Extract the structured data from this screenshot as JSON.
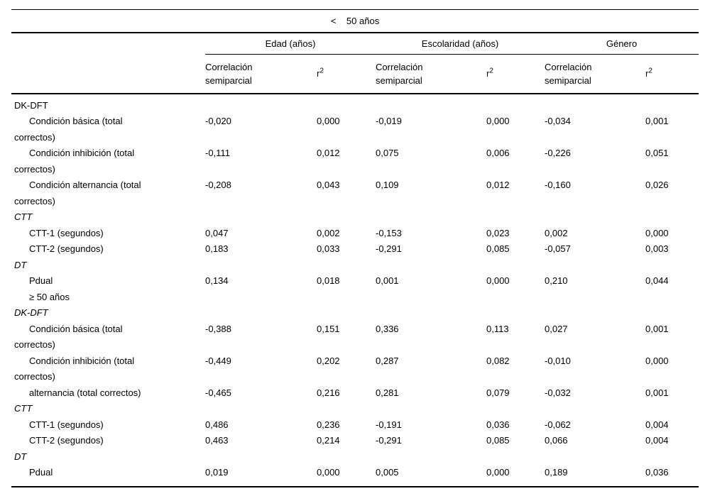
{
  "colors": {
    "text": "#000000",
    "background": "#ffffff",
    "rule": "#000000"
  },
  "table": {
    "title": "<    50 años",
    "groups": [
      {
        "label": "Edad (años)"
      },
      {
        "label": "Escolaridad (años)"
      },
      {
        "label": "Género"
      }
    ],
    "corr_header": "Correlación\nsemiparcial",
    "r2": {
      "base": "r",
      "sup": "2"
    },
    "rows": [
      {
        "type": "section",
        "italic": false,
        "label": "DK-DFT",
        "values": []
      },
      {
        "type": "item",
        "italic": false,
        "label": "Condición básica (total\ncorrectos)",
        "values": [
          "-0,020",
          "0,000",
          "-0,019",
          "0,000",
          "-0,034",
          "0,001"
        ]
      },
      {
        "type": "item",
        "italic": false,
        "label": "Condición inhibición (total\ncorrectos)",
        "values": [
          "-0,111",
          "0,012",
          "0,075",
          "0,006",
          "-0,226",
          "0,051"
        ]
      },
      {
        "type": "item",
        "italic": false,
        "label": "Condición alternancia (total\ncorrectos)",
        "values": [
          "-0,208",
          "0,043",
          "0,109",
          "0,012",
          "-0,160",
          "0,026"
        ]
      },
      {
        "type": "section",
        "italic": true,
        "label": "CTT",
        "values": []
      },
      {
        "type": "item",
        "italic": false,
        "label": "CTT-1 (segundos)",
        "values": [
          "0,047",
          "0,002",
          "-0,153",
          "0,023",
          "0,002",
          "0,000"
        ]
      },
      {
        "type": "item",
        "italic": false,
        "label": "CTT-2 (segundos)",
        "values": [
          "0,183",
          "0,033",
          "-0,291",
          "0,085",
          "-0,057",
          "0,003"
        ]
      },
      {
        "type": "section",
        "italic": true,
        "label": "DT",
        "values": []
      },
      {
        "type": "item",
        "italic": false,
        "label": "Pdual",
        "values": [
          "0,134",
          "0,018",
          "0,001",
          "0,000",
          "0,210",
          "0,044"
        ]
      },
      {
        "type": "item",
        "italic": false,
        "label": "≥ 50 años",
        "values": []
      },
      {
        "type": "section",
        "italic": true,
        "label": "DK-DFT",
        "values": []
      },
      {
        "type": "item",
        "italic": false,
        "label": "Condición básica (total\ncorrectos)",
        "values": [
          "-0,388",
          "0,151",
          "0,336",
          "0,113",
          "0,027",
          "0,001"
        ]
      },
      {
        "type": "item",
        "italic": false,
        "label": "Condición inhibición (total\ncorrectos)",
        "values": [
          "-0,449",
          "0,202",
          "0,287",
          "0,082",
          "-0,010",
          "0,000"
        ]
      },
      {
        "type": "item",
        "italic": false,
        "label": "alternancia (total correctos)",
        "values": [
          "-0,465",
          "0,216",
          "0,281",
          "0,079",
          "-0,032",
          "0,001"
        ]
      },
      {
        "type": "section",
        "italic": true,
        "label": "CTT",
        "values": []
      },
      {
        "type": "item",
        "italic": false,
        "label": "CTT-1 (segundos)",
        "values": [
          "0,486",
          "0,236",
          "-0,191",
          "0,036",
          "-0,062",
          "0,004"
        ]
      },
      {
        "type": "item",
        "italic": false,
        "label": "CTT-2 (segundos)",
        "values": [
          "0,463",
          "0,214",
          "-0,291",
          "0,085",
          "0,066",
          "0,004"
        ]
      },
      {
        "type": "section",
        "italic": true,
        "label": "DT",
        "values": []
      },
      {
        "type": "item",
        "italic": false,
        "label": "Pdual",
        "values": [
          "0,019",
          "0,000",
          "0,005",
          "0,000",
          "0,189",
          "0,036"
        ]
      }
    ]
  }
}
